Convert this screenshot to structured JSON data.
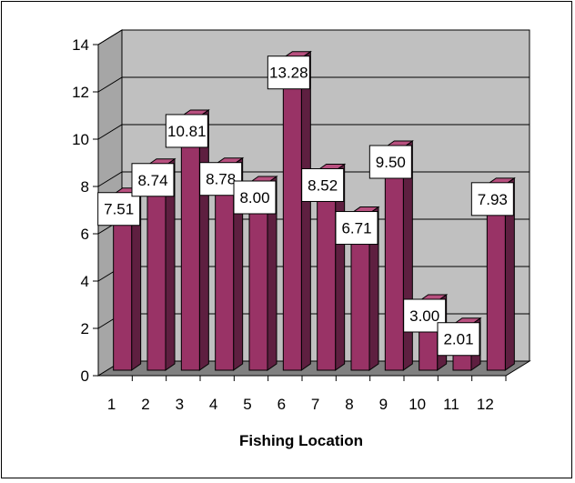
{
  "chart_data": {
    "type": "bar",
    "title": "",
    "xlabel": "Fishing Location",
    "ylabel": "",
    "categories": [
      "1",
      "2",
      "3",
      "4",
      "5",
      "6",
      "7",
      "8",
      "9",
      "10",
      "11",
      "12"
    ],
    "values": [
      7.51,
      8.74,
      10.81,
      8.78,
      8.0,
      13.28,
      8.52,
      6.71,
      9.5,
      3.0,
      2.01,
      7.93
    ],
    "data_labels": [
      "7.51",
      "8.74",
      "10.81",
      "8.78",
      "8.00",
      "13.28",
      "8.52",
      "6.71",
      "9.50",
      "3.00",
      "2.01",
      "7.93"
    ],
    "yticks": [
      "0",
      "2",
      "4",
      "6",
      "8",
      "10",
      "12",
      "14"
    ],
    "ylim": [
      0,
      14
    ],
    "grid": true,
    "legend": "none",
    "style": "3d-column",
    "colors": {
      "bar_front": "#993366",
      "bar_side": "#5e1f40",
      "bar_top": "#b8507f",
      "wall": "#c0c0c0",
      "floor": "#808080",
      "label_box": "#ffffff"
    }
  }
}
